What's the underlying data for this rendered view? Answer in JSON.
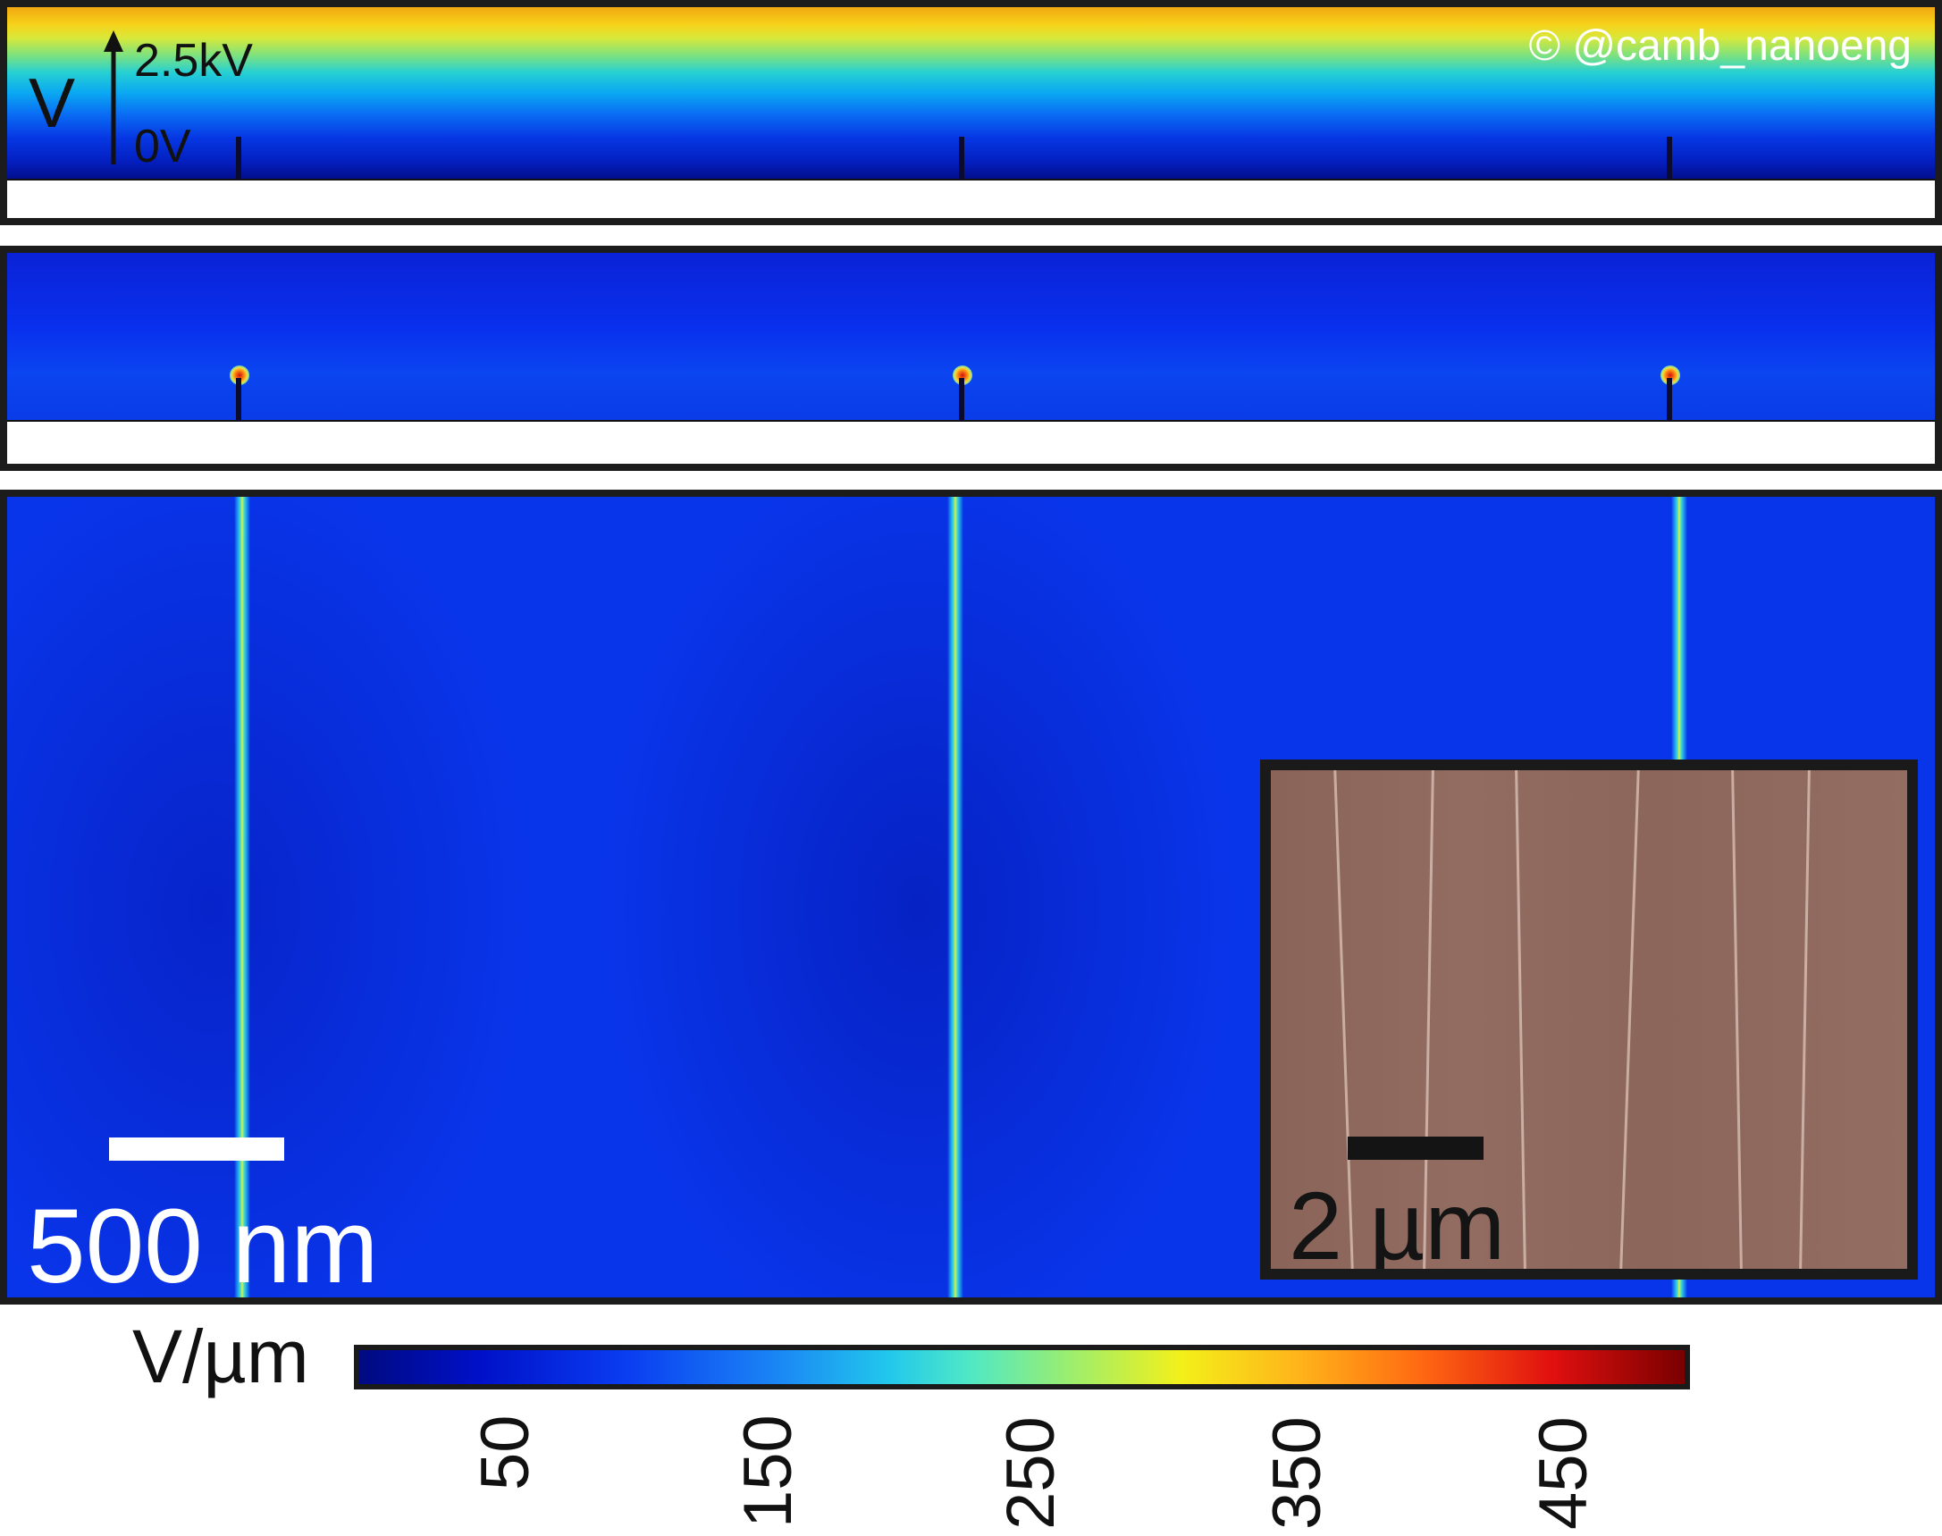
{
  "top_panel": {
    "axis_symbol": "V",
    "top_value": "2.5kV",
    "bottom_value": "0V",
    "watermark": "© @camb_nanoeng"
  },
  "main_panel": {
    "scalebar_label": "500 nm"
  },
  "inset": {
    "scalebar_label": "2 µm"
  },
  "colorbar": {
    "unit": "V/µm",
    "ticks": [
      "50",
      "150",
      "250",
      "350",
      "450"
    ],
    "colormap": "jet"
  }
}
